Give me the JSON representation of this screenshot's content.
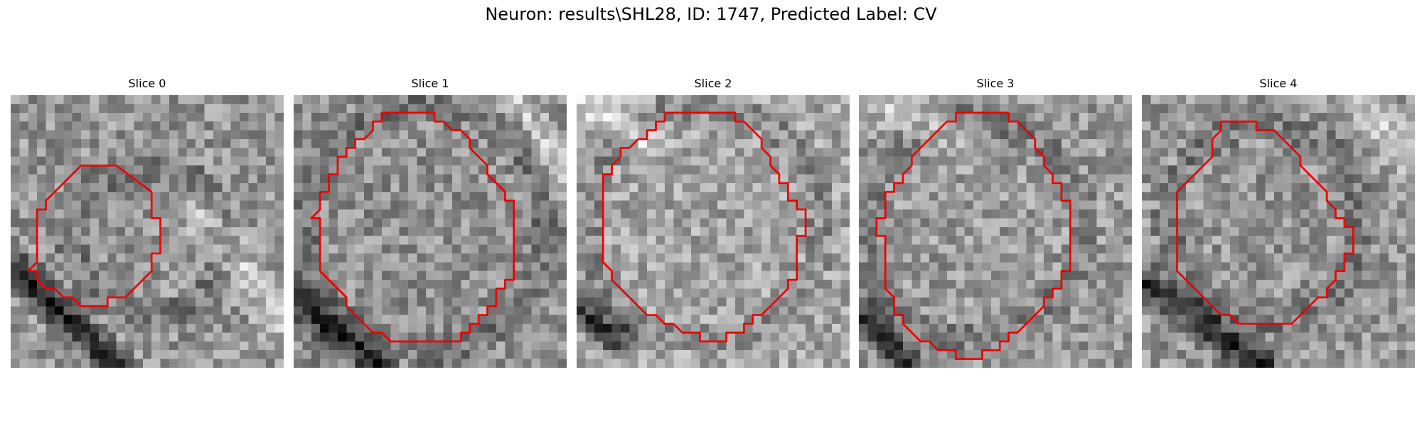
{
  "figure": {
    "title": "Neuron: results\\SHL28, ID: 1747, Predicted Label: CV"
  },
  "colors": {
    "contour": "#ee0000",
    "background": "#ffffff"
  },
  "slices": [
    {
      "label": "Slice 0",
      "contour": [
        [
          9,
          8
        ],
        [
          12,
          8
        ],
        [
          16,
          11
        ],
        [
          16,
          14
        ],
        [
          17,
          14
        ],
        [
          17,
          18
        ],
        [
          16,
          18
        ],
        [
          16,
          20
        ],
        [
          13,
          23
        ],
        [
          11,
          23
        ],
        [
          11,
          24
        ],
        [
          8,
          24
        ],
        [
          7,
          23
        ],
        [
          6,
          23
        ],
        [
          5,
          22
        ],
        [
          4,
          22
        ],
        [
          3,
          21
        ],
        [
          3,
          20
        ],
        [
          2,
          20
        ],
        [
          3,
          19
        ],
        [
          3,
          13
        ],
        [
          4,
          13
        ],
        [
          4,
          12
        ],
        [
          8,
          8
        ]
      ]
    },
    {
      "label": "Slice 1",
      "contour": [
        [
          11,
          2
        ],
        [
          16,
          2
        ],
        [
          16,
          3
        ],
        [
          17,
          3
        ],
        [
          18,
          4
        ],
        [
          19,
          4
        ],
        [
          20,
          5
        ],
        [
          20,
          6
        ],
        [
          21,
          7
        ],
        [
          22,
          8
        ],
        [
          22,
          9
        ],
        [
          23,
          10
        ],
        [
          24,
          11
        ],
        [
          24,
          12
        ],
        [
          25,
          12
        ],
        [
          25,
          21
        ],
        [
          24,
          21
        ],
        [
          24,
          22
        ],
        [
          23,
          22
        ],
        [
          23,
          24
        ],
        [
          22,
          24
        ],
        [
          22,
          25
        ],
        [
          21,
          25
        ],
        [
          21,
          26
        ],
        [
          20,
          26
        ],
        [
          20,
          27
        ],
        [
          19,
          27
        ],
        [
          19,
          28
        ],
        [
          11,
          28
        ],
        [
          10,
          27
        ],
        [
          9,
          27
        ],
        [
          8,
          26
        ],
        [
          7,
          25
        ],
        [
          6,
          24
        ],
        [
          6,
          23
        ],
        [
          5,
          22
        ],
        [
          4,
          21
        ],
        [
          3,
          20
        ],
        [
          3,
          14
        ],
        [
          2,
          14
        ],
        [
          3,
          13
        ],
        [
          3,
          11
        ],
        [
          4,
          11
        ],
        [
          4,
          9
        ],
        [
          5,
          9
        ],
        [
          5,
          7
        ],
        [
          6,
          7
        ],
        [
          6,
          6
        ],
        [
          7,
          6
        ],
        [
          7,
          5
        ],
        [
          8,
          5
        ],
        [
          9,
          4
        ],
        [
          9,
          3
        ],
        [
          10,
          3
        ],
        [
          10,
          2
        ]
      ]
    },
    {
      "label": "Slice 2",
      "contour": [
        [
          10,
          2
        ],
        [
          18,
          2
        ],
        [
          18,
          3
        ],
        [
          19,
          3
        ],
        [
          20,
          4
        ],
        [
          21,
          5
        ],
        [
          21,
          6
        ],
        [
          22,
          7
        ],
        [
          22,
          8
        ],
        [
          23,
          9
        ],
        [
          23,
          10
        ],
        [
          24,
          10
        ],
        [
          24,
          11
        ],
        [
          24,
          12
        ],
        [
          25,
          12
        ],
        [
          25,
          13
        ],
        [
          26,
          13
        ],
        [
          26,
          16
        ],
        [
          25,
          16
        ],
        [
          25,
          21
        ],
        [
          24,
          21
        ],
        [
          24,
          22
        ],
        [
          23,
          23
        ],
        [
          22,
          24
        ],
        [
          21,
          25
        ],
        [
          20,
          25
        ],
        [
          20,
          26
        ],
        [
          19,
          26
        ],
        [
          19,
          27
        ],
        [
          18,
          27
        ],
        [
          17,
          27
        ],
        [
          17,
          28
        ],
        [
          14,
          28
        ],
        [
          14,
          27
        ],
        [
          12,
          27
        ],
        [
          11,
          26
        ],
        [
          10,
          26
        ],
        [
          9,
          25
        ],
        [
          8,
          25
        ],
        [
          7,
          24
        ],
        [
          6,
          23
        ],
        [
          5,
          22
        ],
        [
          4,
          21
        ],
        [
          4,
          20
        ],
        [
          3,
          19
        ],
        [
          3,
          9
        ],
        [
          4,
          9
        ],
        [
          4,
          8
        ],
        [
          5,
          7
        ],
        [
          5,
          6
        ],
        [
          6,
          6
        ],
        [
          7,
          5
        ],
        [
          8,
          5
        ],
        [
          8,
          4
        ],
        [
          9,
          4
        ],
        [
          9,
          3
        ],
        [
          10,
          3
        ]
      ]
    },
    {
      "label": "Slice 3",
      "contour": [
        [
          11,
          2
        ],
        [
          17,
          2
        ],
        [
          17,
          3
        ],
        [
          18,
          3
        ],
        [
          19,
          4
        ],
        [
          20,
          5
        ],
        [
          20,
          6
        ],
        [
          21,
          7
        ],
        [
          21,
          8
        ],
        [
          22,
          9
        ],
        [
          22,
          10
        ],
        [
          23,
          10
        ],
        [
          23,
          12
        ],
        [
          24,
          12
        ],
        [
          24,
          20
        ],
        [
          23,
          20
        ],
        [
          23,
          22
        ],
        [
          22,
          22
        ],
        [
          22,
          23
        ],
        [
          21,
          23
        ],
        [
          21,
          24
        ],
        [
          20,
          25
        ],
        [
          19,
          26
        ],
        [
          18,
          27
        ],
        [
          17,
          27
        ],
        [
          17,
          28
        ],
        [
          16,
          28
        ],
        [
          16,
          29
        ],
        [
          14,
          29
        ],
        [
          14,
          30
        ],
        [
          11,
          30
        ],
        [
          11,
          29
        ],
        [
          9,
          29
        ],
        [
          8,
          28
        ],
        [
          7,
          28
        ],
        [
          6,
          27
        ],
        [
          5,
          26
        ],
        [
          5,
          25
        ],
        [
          4,
          25
        ],
        [
          4,
          23
        ],
        [
          3,
          22
        ],
        [
          3,
          16
        ],
        [
          2,
          16
        ],
        [
          2,
          14
        ],
        [
          3,
          14
        ],
        [
          3,
          11
        ],
        [
          4,
          11
        ],
        [
          4,
          10
        ],
        [
          5,
          10
        ],
        [
          5,
          9
        ],
        [
          6,
          8
        ],
        [
          6,
          7
        ],
        [
          7,
          6
        ],
        [
          8,
          5
        ],
        [
          9,
          4
        ],
        [
          10,
          3
        ],
        [
          11,
          3
        ]
      ]
    },
    {
      "label": "Slice 4",
      "contour": [
        [
          9,
          3
        ],
        [
          13,
          3
        ],
        [
          13,
          4
        ],
        [
          14,
          4
        ],
        [
          15,
          4
        ],
        [
          16,
          5
        ],
        [
          17,
          6
        ],
        [
          18,
          7
        ],
        [
          18,
          8
        ],
        [
          19,
          9
        ],
        [
          20,
          10
        ],
        [
          21,
          11
        ],
        [
          21,
          12
        ],
        [
          22,
          13
        ],
        [
          22,
          14
        ],
        [
          23,
          14
        ],
        [
          23,
          15
        ],
        [
          24,
          15
        ],
        [
          24,
          18
        ],
        [
          23,
          18
        ],
        [
          23,
          20
        ],
        [
          22,
          20
        ],
        [
          22,
          21
        ],
        [
          21,
          22
        ],
        [
          21,
          23
        ],
        [
          20,
          23
        ],
        [
          19,
          24
        ],
        [
          18,
          25
        ],
        [
          17,
          26
        ],
        [
          11,
          26
        ],
        [
          10,
          25
        ],
        [
          9,
          25
        ],
        [
          8,
          24
        ],
        [
          7,
          23
        ],
        [
          6,
          22
        ],
        [
          5,
          21
        ],
        [
          4,
          20
        ],
        [
          4,
          11
        ],
        [
          5,
          10
        ],
        [
          6,
          9
        ],
        [
          7,
          8
        ],
        [
          8,
          7
        ],
        [
          8,
          6
        ],
        [
          8,
          5
        ],
        [
          9,
          4
        ]
      ]
    }
  ]
}
